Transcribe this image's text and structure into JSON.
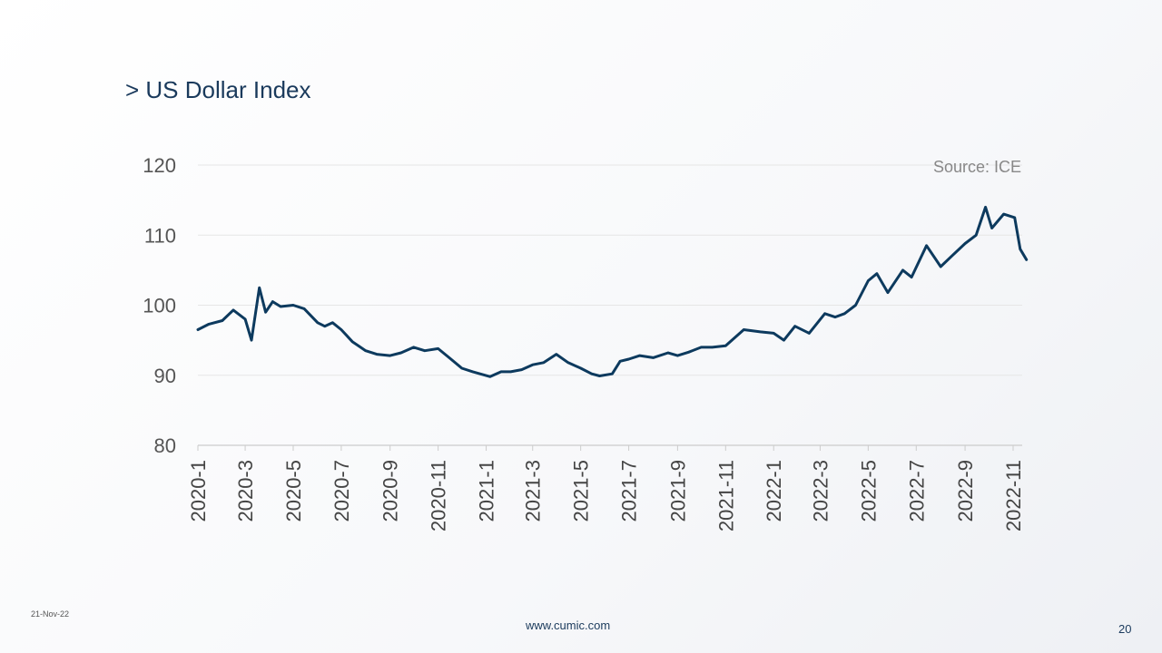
{
  "slide": {
    "title": "> US Dollar Index",
    "date": "21-Nov-22",
    "url": "www.cumic.com",
    "page_number": "20"
  },
  "colors": {
    "line": "#0d3a5e",
    "grid": "#e6e6e6",
    "axis": "#cccccc",
    "title": "#1a3a5c"
  },
  "chart_data": {
    "type": "line",
    "title": "",
    "source": "Source: ICE",
    "xlabel": "",
    "ylabel": "",
    "ylim": [
      80,
      120
    ],
    "yticks": [
      80,
      90,
      100,
      110,
      120
    ],
    "grid": true,
    "x_ticks": [
      "2020-1",
      "2020-3",
      "2020-5",
      "2020-7",
      "2020-9",
      "2020-11",
      "2021-1",
      "2021-3",
      "2021-5",
      "2021-7",
      "2021-9",
      "2021-11",
      "2022-1",
      "2022-3",
      "2022-5",
      "2022-7",
      "2022-9",
      "2022-11"
    ],
    "series": [
      {
        "name": "",
        "x": [
          "2020-01-01",
          "2020-01-15",
          "2020-02-01",
          "2020-02-15",
          "2020-03-01",
          "2020-03-09",
          "2020-03-19",
          "2020-03-27",
          "2020-04-05",
          "2020-04-15",
          "2020-05-01",
          "2020-05-15",
          "2020-06-01",
          "2020-06-10",
          "2020-06-20",
          "2020-07-01",
          "2020-07-15",
          "2020-08-01",
          "2020-08-15",
          "2020-09-01",
          "2020-09-15",
          "2020-10-01",
          "2020-10-15",
          "2020-11-01",
          "2020-11-15",
          "2020-12-01",
          "2020-12-15",
          "2021-01-06",
          "2021-01-20",
          "2021-02-01",
          "2021-02-15",
          "2021-03-01",
          "2021-03-15",
          "2021-03-31",
          "2021-04-15",
          "2021-05-01",
          "2021-05-15",
          "2021-05-25",
          "2021-06-10",
          "2021-06-20",
          "2021-07-01",
          "2021-07-15",
          "2021-08-01",
          "2021-08-20",
          "2021-09-01",
          "2021-09-15",
          "2021-10-01",
          "2021-10-15",
          "2021-11-01",
          "2021-11-24",
          "2021-12-15",
          "2022-01-01",
          "2022-01-14",
          "2022-01-28",
          "2022-02-15",
          "2022-03-07",
          "2022-03-20",
          "2022-04-01",
          "2022-04-15",
          "2022-05-01",
          "2022-05-12",
          "2022-05-26",
          "2022-06-14",
          "2022-06-25",
          "2022-07-14",
          "2022-08-01",
          "2022-08-15",
          "2022-09-01",
          "2022-09-15",
          "2022-09-27",
          "2022-10-05",
          "2022-10-20",
          "2022-11-03",
          "2022-11-10",
          "2022-11-18"
        ],
        "values": [
          96.5,
          97.3,
          97.8,
          99.3,
          98.0,
          95.0,
          102.5,
          99.0,
          100.5,
          99.8,
          100.0,
          99.5,
          97.5,
          97.0,
          97.5,
          96.5,
          94.8,
          93.5,
          93.0,
          92.8,
          93.2,
          94.0,
          93.5,
          93.8,
          92.5,
          91.0,
          90.5,
          89.8,
          90.5,
          90.5,
          90.8,
          91.5,
          91.8,
          93.0,
          91.8,
          91.0,
          90.2,
          89.9,
          90.2,
          92.0,
          92.3,
          92.8,
          92.5,
          93.2,
          92.8,
          93.3,
          94.0,
          94.0,
          94.2,
          96.5,
          96.2,
          96.0,
          95.0,
          97.0,
          96.0,
          98.8,
          98.3,
          98.8,
          100.0,
          103.5,
          104.5,
          101.8,
          105.0,
          104.0,
          108.5,
          105.5,
          107.0,
          108.8,
          110.0,
          114.0,
          111.0,
          113.0,
          112.5,
          108.0,
          106.5
        ]
      }
    ]
  }
}
